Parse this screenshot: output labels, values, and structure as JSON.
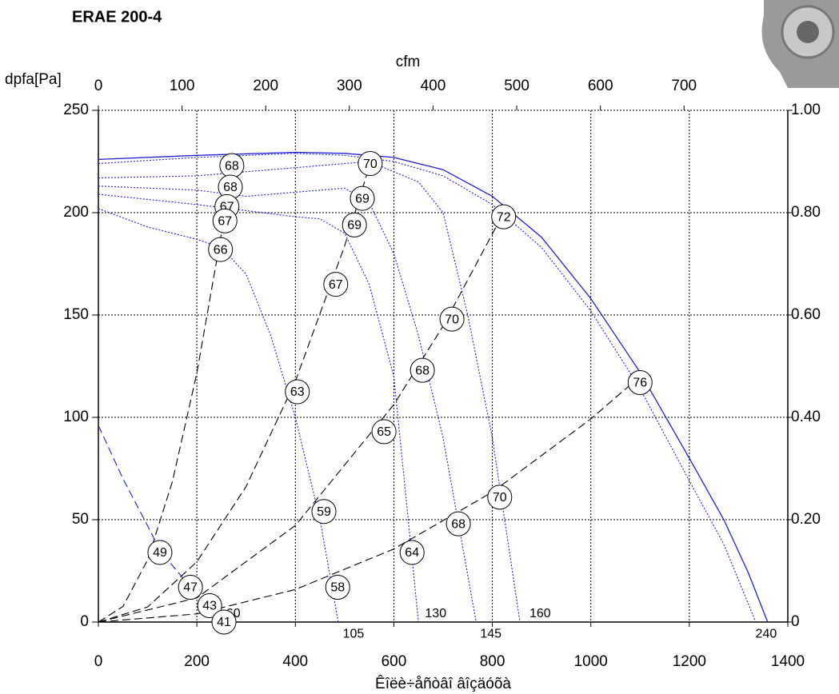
{
  "chart_data": {
    "type": "line",
    "title": "ERAE 200-4",
    "x_label": "Êîëè÷åñòâî âîçäóõà",
    "y_label": "dpfa[Pa]",
    "x2_label": "cfm",
    "xlim": [
      0,
      1400
    ],
    "xticks": [
      0,
      200,
      400,
      600,
      800,
      1000,
      1200,
      1400
    ],
    "ylim": [
      0,
      250
    ],
    "yticks": [
      0,
      50,
      100,
      150,
      200,
      250
    ],
    "x2lim": [
      0,
      824
    ],
    "x2ticks": [
      0,
      100,
      200,
      300,
      400,
      500,
      600,
      700
    ],
    "y2lim": [
      0,
      1
    ],
    "y2ticks": [
      0,
      {
        "value": 0.2,
        "label": "0.20"
      },
      {
        "value": 0.4,
        "label": "0.40"
      },
      {
        "value": 0.6,
        "label": "0.60"
      },
      {
        "value": 0.8,
        "label": "0.80"
      },
      {
        "value": 1,
        "label": "1.00"
      }
    ],
    "grid": true,
    "curves": [
      {
        "color": "#1f1fd8",
        "style": "solid",
        "x": [
          0,
          200,
          400,
          500,
          600,
          700,
          800,
          900,
          1000,
          1100,
          1200,
          1270,
          1320,
          1359
        ],
        "y": [
          226,
          228,
          229.5,
          229,
          227,
          221,
          208,
          188,
          158,
          122,
          80,
          50,
          24,
          0
        ]
      },
      {
        "color": "#1f1fd8",
        "style": "dotted",
        "x": [
          0,
          200,
          400,
          500,
          600,
          700,
          800,
          900,
          1000,
          1100,
          1200,
          1270,
          1335
        ],
        "y": [
          224,
          227,
          229,
          228,
          225,
          218,
          204,
          183,
          152,
          114,
          69,
          38,
          0
        ]
      },
      {
        "color": "#1f1fd8",
        "style": "dotted",
        "x": [
          0,
          100,
          200,
          250,
          300,
          350,
          400,
          450,
          487
        ],
        "y": [
          202,
          193,
          187,
          183,
          170,
          140,
          100,
          50,
          0
        ]
      },
      {
        "color": "#1f1fd8",
        "style": "dotted",
        "x": [
          0,
          200,
          400,
          450,
          500,
          550,
          600,
          650
        ],
        "y": [
          209,
          204,
          198,
          197,
          190,
          165,
          120,
          0
        ]
      },
      {
        "color": "#1f1fd8",
        "style": "dotted",
        "x": [
          0,
          200,
          300,
          400,
          500,
          550,
          600,
          650,
          700,
          767
        ],
        "y": [
          213,
          211,
          208,
          210,
          212,
          205,
          180,
          140,
          90,
          0
        ]
      },
      {
        "color": "#1f1fd8",
        "style": "dotted",
        "x": [
          0,
          200,
          400,
          550,
          650,
          700,
          750,
          800,
          856
        ],
        "y": [
          217,
          218,
          222,
          225,
          215,
          200,
          150,
          90,
          0
        ]
      },
      {
        "color": "#000000",
        "style": "dashed",
        "x": [
          0,
          50,
          100,
          150,
          200,
          250,
          271
        ],
        "y": [
          0,
          7.6,
          30.4,
          68.4,
          121.6,
          190,
          223
        ]
      },
      {
        "color": "#000000",
        "style": "dashed",
        "x": [
          0,
          100,
          200,
          300,
          400,
          500,
          552
        ],
        "y": [
          0,
          7.4,
          29.4,
          66.2,
          117.6,
          183.8,
          224
        ]
      },
      {
        "color": "#000000",
        "style": "dashed",
        "x": [
          0,
          200,
          400,
          600,
          700,
          823
        ],
        "y": [
          0,
          11.8,
          47.2,
          106.2,
          144.6,
          200
        ]
      },
      {
        "color": "#000000",
        "style": "dashed",
        "x": [
          0,
          200,
          400,
          600,
          800,
          1000,
          1100
        ],
        "y": [
          0,
          4,
          15.9,
          35.7,
          63.5,
          99.2,
          120
        ]
      },
      {
        "color": "#1f1fd8",
        "style": "dashed",
        "x": [
          0,
          50,
          100,
          125,
          187,
          226,
          255
        ],
        "y": [
          96,
          70,
          47,
          35,
          17,
          8,
          0
        ]
      }
    ],
    "points": [
      {
        "x": 271,
        "y": 223,
        "label": 68
      },
      {
        "x": 268,
        "y": 212.5,
        "label": 68
      },
      {
        "x": 261,
        "y": 203,
        "label": 67
      },
      {
        "x": 257,
        "y": 196,
        "label": 67
      },
      {
        "x": 248,
        "y": 182,
        "label": 66
      },
      {
        "x": 552,
        "y": 224,
        "label": 70
      },
      {
        "x": 536,
        "y": 207,
        "label": 69
      },
      {
        "x": 520,
        "y": 194,
        "label": 69
      },
      {
        "x": 823,
        "y": 198,
        "label": 72
      },
      {
        "x": 482,
        "y": 165,
        "label": 67
      },
      {
        "x": 718,
        "y": 148,
        "label": 70
      },
      {
        "x": 404,
        "y": 112.5,
        "label": 63
      },
      {
        "x": 658,
        "y": 123,
        "label": 68
      },
      {
        "x": 1100,
        "y": 117,
        "label": 76
      },
      {
        "x": 580,
        "y": 93,
        "label": 65
      },
      {
        "x": 458,
        "y": 54,
        "label": 59
      },
      {
        "x": 815,
        "y": 61,
        "label": 70
      },
      {
        "x": 731,
        "y": 48,
        "label": 68
      },
      {
        "x": 637,
        "y": 34,
        "label": 64
      },
      {
        "x": 125,
        "y": 34,
        "label": 49
      },
      {
        "x": 187,
        "y": 17,
        "label": 47
      },
      {
        "x": 486,
        "y": 17,
        "label": 58
      },
      {
        "x": 226,
        "y": 8,
        "label": 43
      },
      {
        "x": 255,
        "y": 0,
        "label": 41
      }
    ],
    "curve_labels": [
      {
        "text": "60",
        "x": 274,
        "y": 4
      },
      {
        "text": "105",
        "x": 518,
        "y": -6
      },
      {
        "text": "130",
        "x": 685,
        "y": 4
      },
      {
        "text": "145",
        "x": 797,
        "y": -6
      },
      {
        "text": "160",
        "x": 897,
        "y": 4
      },
      {
        "text": "240",
        "x": 1356,
        "y": -6
      }
    ]
  }
}
